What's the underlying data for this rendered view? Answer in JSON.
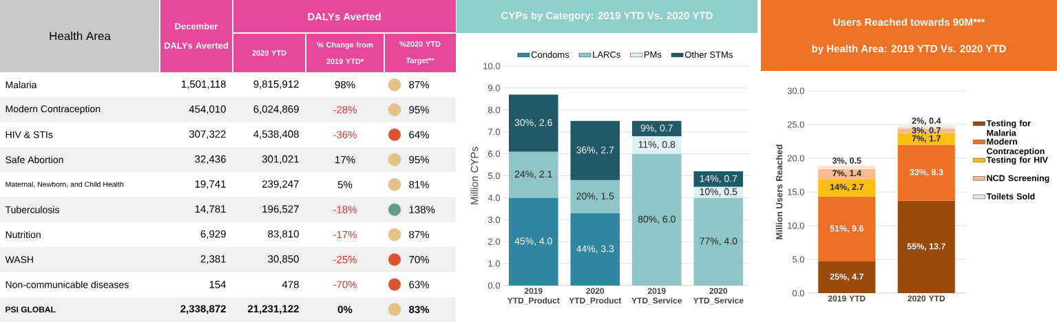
{
  "chart_data": [
    {
      "type": "other",
      "title": "DALYs Averted",
      "ylabel": "Health Area",
      "categories": [
        "December DALYs Averted",
        "2020 YTD",
        "% Change from 2019 YTD*",
        "%2020 YTD Target**"
      ],
      "y_categories": [
        "Malaria",
        "Modern Contraception",
        "HIV & STIs",
        "Safe Abortion",
        "Maternal, Newborn, and Child Health",
        "Tuberculosis",
        "Nutrition",
        "WASH",
        "Non-communicable diseases",
        "PSI GLOBAL"
      ],
      "cell_labels": [
        [
          "1,501,118",
          "9,815,912",
          "98%",
          "87%"
        ],
        [
          "454,010",
          "6,024,869",
          "-28%",
          "95%"
        ],
        [
          "307,322",
          "4,538,408",
          "-36%",
          "64%"
        ],
        [
          "32,436",
          "301,021",
          "17%",
          "95%"
        ],
        [
          "19,741",
          "239,247",
          "5%",
          "81%"
        ],
        [
          "14,781",
          "196,527",
          "-18%",
          "138%"
        ],
        [
          "6,929",
          "83,810",
          "-17%",
          "87%"
        ],
        [
          "2,381",
          "30,850",
          "-25%",
          "70%"
        ],
        [
          "154",
          "478",
          "-70%",
          "63%"
        ],
        [
          "2,338,872",
          "21,231,122",
          "0%",
          "83%"
        ]
      ]
    },
    {
      "type": "bar",
      "title": "CYPs by Category: 2019 YTD Vs. 2020 YTD",
      "ylabel": "Million CYPs",
      "stacked": true,
      "categories": [
        "2019 YTD_Product",
        "2020 YTD_Product",
        "2019 YTD_Service",
        "2020 YTD_Service"
      ],
      "series": [
        {
          "name": "Condoms",
          "color": "#2f869e",
          "values": [
            4.0,
            3.3,
            null,
            null
          ],
          "value_labels": [
            "45%, 4.0",
            "44%, 3.3",
            null,
            null
          ]
        },
        {
          "name": "LARCs",
          "color": "#8fc5c4",
          "values": [
            2.1,
            1.5,
            6.0,
            4.0
          ],
          "value_labels": [
            "24%, 2.1",
            "20%, 1.5",
            "80%, 6.0",
            "77%, 4.0"
          ]
        },
        {
          "name": "PMs",
          "color": "#dff0f4",
          "values": [
            null,
            null,
            0.8,
            0.5
          ],
          "value_labels": [
            null,
            null,
            "11%, 0.8",
            "10%, 0.5"
          ]
        },
        {
          "name": "Other STMs",
          "color": "#225968",
          "values": [
            2.6,
            2.7,
            0.7,
            0.7
          ],
          "value_labels": [
            "30%, 2.6",
            "36%, 2.7",
            "9%, 0.7",
            "14%, 0.7"
          ]
        }
      ],
      "ylim": [
        0,
        10
      ],
      "yticks": [
        {
          "value": 0,
          "label": "0.0"
        },
        {
          "value": 1,
          "label": "1.0"
        },
        {
          "value": 2,
          "label": "2.0"
        },
        {
          "value": 3,
          "label": "3.0"
        },
        {
          "value": 4,
          "label": "4.0"
        },
        {
          "value": 5,
          "label": "5.0"
        },
        {
          "value": 6,
          "label": "6.0"
        },
        {
          "value": 7,
          "label": "7.0"
        },
        {
          "value": 8,
          "label": "8.0"
        },
        {
          "value": 9,
          "label": "9.0"
        },
        {
          "value": 10,
          "label": "10.0"
        }
      ],
      "grid": "y",
      "legend": "top"
    },
    {
      "type": "bar",
      "title": "Users Reached towards 90M***",
      "subtitle": "by Health Area: 2019 YTD Vs. 2020 YTD",
      "ylabel": "Million Users Reached",
      "stacked": true,
      "categories": [
        "2019 YTD",
        "2020 YTD"
      ],
      "series": [
        {
          "name": "Testing for Malaria",
          "color": "#9a4a0c",
          "values": [
            4.7,
            13.7
          ],
          "value_labels": [
            "25%, 4.7",
            "55%, 13.7"
          ]
        },
        {
          "name": "Modern Contraception",
          "color": "#ee7027",
          "values": [
            9.6,
            8.3
          ],
          "value_labels": [
            "51%, 9.6",
            "33%, 8.3"
          ]
        },
        {
          "name": "Testing for HIV",
          "color": "#fdc010",
          "values": [
            2.7,
            1.7
          ],
          "value_labels": [
            "14%, 2.7",
            "7%, 1.7"
          ]
        },
        {
          "name": "NCD Screening",
          "color": "#f7bb8e",
          "values": [
            1.4,
            0.7
          ],
          "value_labels": [
            "7%, 1.4",
            "3%, 0.7"
          ]
        },
        {
          "name": "Toilets Sold",
          "color": "#fbe3d5",
          "values": [
            0.5,
            0.4
          ],
          "value_labels": [
            "3%, 0.5",
            "2%, 0.4"
          ]
        }
      ],
      "ylim": [
        0,
        30
      ],
      "yticks": [
        {
          "value": 0,
          "label": "0.0"
        },
        {
          "value": 5,
          "label": "5.0"
        },
        {
          "value": 10,
          "label": "10.0"
        },
        {
          "value": 15,
          "label": "15.0"
        },
        {
          "value": 20,
          "label": "20.0"
        },
        {
          "value": 25,
          "label": "25.0"
        },
        {
          "value": 30,
          "label": "30.0"
        }
      ],
      "grid": "y",
      "legend": "right"
    }
  ]
}
